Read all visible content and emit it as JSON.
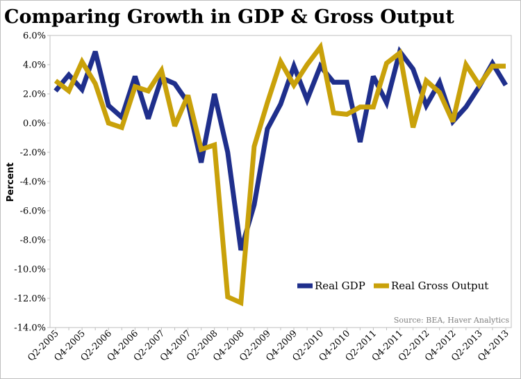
{
  "chart_data": {
    "type": "line",
    "title": "Comparing Growth in GDP & Gross Output",
    "xlabel": "",
    "ylabel": "Percent",
    "ylim": [
      -14,
      6
    ],
    "yticks": [
      6,
      4,
      2,
      0,
      -2,
      -4,
      -6,
      -8,
      -10,
      -12,
      -14
    ],
    "ytick_labels": [
      "6.0%",
      "4.0%",
      "2.0%",
      "0.0%",
      "-2.0%",
      "-4.0%",
      "-6.0%",
      "-8.0%",
      "-10.0%",
      "-12.0%",
      "-14.0%"
    ],
    "categories": [
      "Q2-2005",
      "Q3-2005",
      "Q4-2005",
      "Q1-2006",
      "Q2-2006",
      "Q3-2006",
      "Q4-2006",
      "Q1-2007",
      "Q2-2007",
      "Q3-2007",
      "Q4-2007",
      "Q1-2008",
      "Q2-2008",
      "Q3-2008",
      "Q4-2008",
      "Q1-2009",
      "Q2-2009",
      "Q3-2009",
      "Q4-2009",
      "Q1-2010",
      "Q2-2010",
      "Q3-2010",
      "Q4-2010",
      "Q1-2011",
      "Q2-2011",
      "Q3-2011",
      "Q4-2011",
      "Q1-2012",
      "Q2-2012",
      "Q3-2012",
      "Q4-2012",
      "Q1-2013",
      "Q2-2013",
      "Q3-2013",
      "Q4-2013"
    ],
    "xtick_labels": [
      "Q2-2005",
      "Q4-2005",
      "Q2-2006",
      "Q4-2006",
      "Q2-2007",
      "Q4-2007",
      "Q2-2008",
      "Q4-2008",
      "Q2-2009",
      "Q4-2009",
      "Q2-2010",
      "Q4-2010",
      "Q2-2011",
      "Q4-2011",
      "Q2-2012",
      "Q4-2012",
      "Q2-2013",
      "Q4-2013"
    ],
    "series": [
      {
        "name": "Real GDP",
        "color": "#1f2f8c",
        "values": [
          2.2,
          3.3,
          2.3,
          4.9,
          1.2,
          0.4,
          3.2,
          0.3,
          3.1,
          2.7,
          1.4,
          -2.7,
          2.0,
          -2.0,
          -8.7,
          -5.6,
          -0.4,
          1.3,
          3.9,
          1.6,
          3.9,
          2.8,
          2.8,
          -1.3,
          3.2,
          1.4,
          4.9,
          3.7,
          1.2,
          2.8,
          0.1,
          1.1,
          2.5,
          4.1,
          2.6
        ]
      },
      {
        "name": "Real Gross Output",
        "color": "#c9a10a",
        "values": [
          2.9,
          2.2,
          4.2,
          2.7,
          0.0,
          -0.3,
          2.5,
          2.2,
          3.6,
          -0.2,
          1.9,
          -1.8,
          -1.5,
          -11.9,
          -12.3,
          -1.6,
          1.4,
          4.2,
          2.6,
          4.0,
          5.2,
          0.7,
          0.6,
          1.1,
          1.1,
          4.1,
          4.8,
          -0.3,
          2.9,
          2.1,
          0.1,
          4.0,
          2.6,
          3.9,
          3.9
        ]
      }
    ],
    "legend": "bottom-right",
    "grid": false
  },
  "source": "Source: BEA, Haver Analytics"
}
